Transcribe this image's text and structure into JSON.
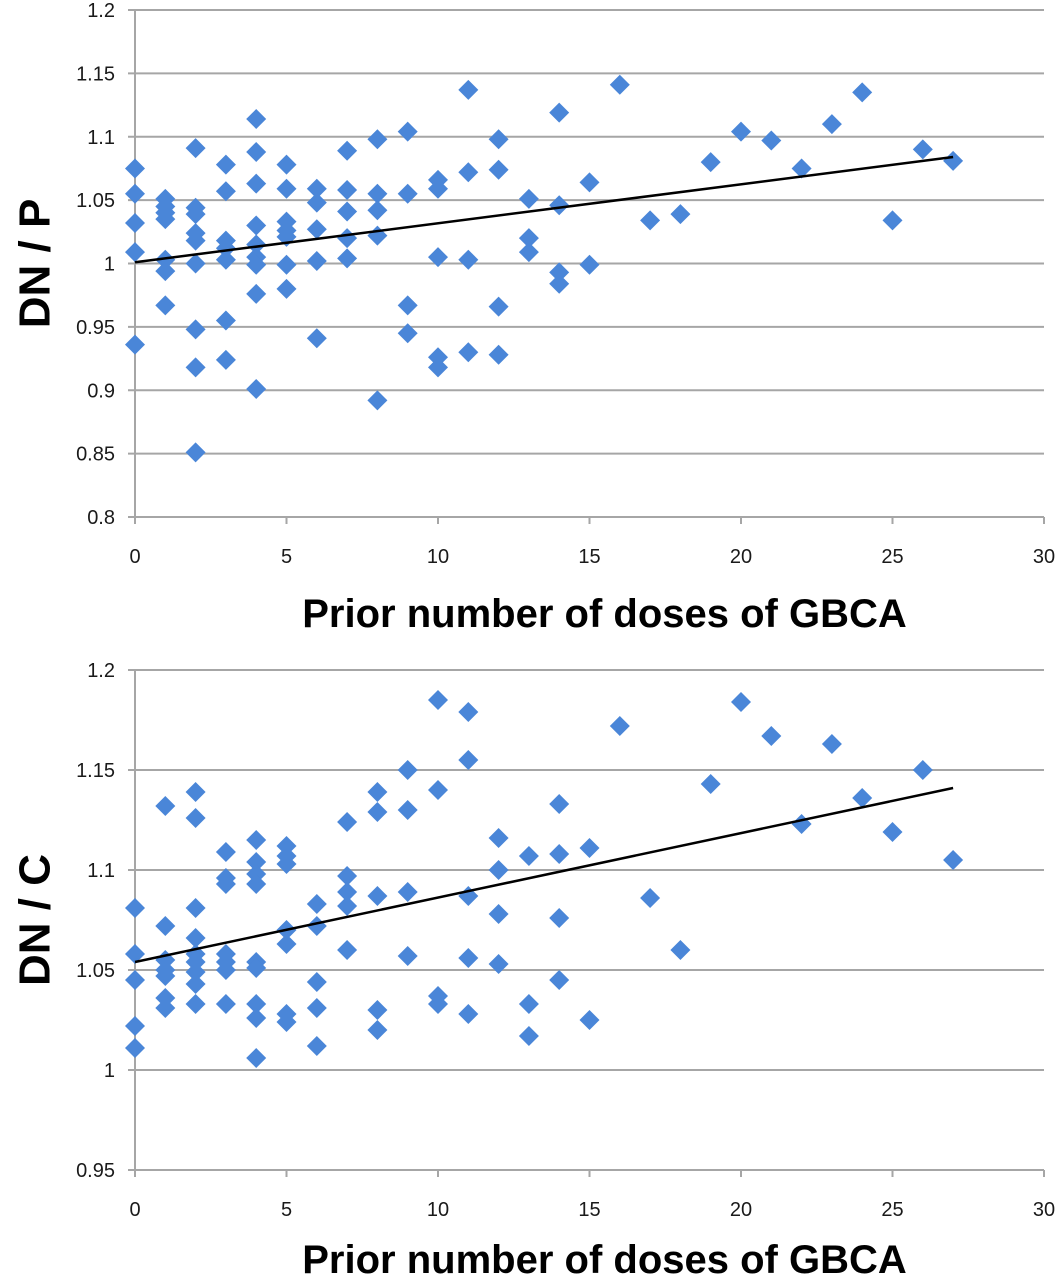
{
  "chart_data": [
    {
      "type": "scatter",
      "xlabel": "Prior number of doses of GBCA",
      "ylabel": "DN / P",
      "xlim": [
        0,
        30
      ],
      "ylim": [
        0.8,
        1.2
      ],
      "xticks": [
        "0",
        "5",
        "10",
        "15",
        "20",
        "25",
        "30"
      ],
      "yticks": [
        "0.8",
        "0.85",
        "0.9",
        "0.95",
        "1",
        "1.05",
        "1.1",
        "1.15",
        "1.2"
      ],
      "grid": "horizontal",
      "marker": "diamond",
      "colors": {
        "points": "#4a86d8",
        "trendline": "#000000",
        "grid": "#a6a6a6"
      },
      "trendline": {
        "type": "linear",
        "x": [
          0,
          27
        ],
        "y": [
          1.001,
          1.084
        ]
      },
      "points": [
        [
          0,
          1.075
        ],
        [
          0,
          1.055
        ],
        [
          0,
          1.032
        ],
        [
          0,
          1.009
        ],
        [
          0,
          0.936
        ],
        [
          1,
          1.051
        ],
        [
          1,
          1.045
        ],
        [
          1,
          1.04
        ],
        [
          1,
          1.035
        ],
        [
          1,
          1.003
        ],
        [
          1,
          0.994
        ],
        [
          1,
          0.967
        ],
        [
          2,
          1.091
        ],
        [
          2,
          1.044
        ],
        [
          2,
          1.039
        ],
        [
          2,
          1.024
        ],
        [
          2,
          1.018
        ],
        [
          2,
          1.0
        ],
        [
          2,
          0.948
        ],
        [
          2,
          0.918
        ],
        [
          2,
          0.851
        ],
        [
          3,
          1.078
        ],
        [
          3,
          1.057
        ],
        [
          3,
          1.018
        ],
        [
          3,
          1.012
        ],
        [
          3,
          1.003
        ],
        [
          3,
          0.955
        ],
        [
          3,
          0.924
        ],
        [
          4,
          1.114
        ],
        [
          4,
          1.088
        ],
        [
          4,
          1.063
        ],
        [
          4,
          1.03
        ],
        [
          4,
          1.015
        ],
        [
          4,
          1.005
        ],
        [
          4,
          0.999
        ],
        [
          4,
          0.976
        ],
        [
          4,
          0.901
        ],
        [
          5,
          1.078
        ],
        [
          5,
          1.059
        ],
        [
          5,
          1.033
        ],
        [
          5,
          1.026
        ],
        [
          5,
          1.021
        ],
        [
          5,
          0.999
        ],
        [
          5,
          0.98
        ],
        [
          6,
          1.059
        ],
        [
          6,
          1.048
        ],
        [
          6,
          1.027
        ],
        [
          6,
          1.002
        ],
        [
          6,
          0.941
        ],
        [
          7,
          1.089
        ],
        [
          7,
          1.058
        ],
        [
          7,
          1.041
        ],
        [
          7,
          1.02
        ],
        [
          7,
          1.004
        ],
        [
          8,
          1.098
        ],
        [
          8,
          1.055
        ],
        [
          8,
          1.042
        ],
        [
          8,
          1.022
        ],
        [
          8,
          0.892
        ],
        [
          9,
          1.104
        ],
        [
          9,
          1.055
        ],
        [
          9,
          0.967
        ],
        [
          9,
          0.945
        ],
        [
          10,
          1.066
        ],
        [
          10,
          1.059
        ],
        [
          10,
          1.005
        ],
        [
          10,
          0.926
        ],
        [
          10,
          0.918
        ],
        [
          11,
          1.137
        ],
        [
          11,
          1.072
        ],
        [
          11,
          1.003
        ],
        [
          11,
          0.93
        ],
        [
          12,
          1.098
        ],
        [
          12,
          1.074
        ],
        [
          12,
          0.966
        ],
        [
          12,
          0.928
        ],
        [
          13,
          1.051
        ],
        [
          13,
          1.02
        ],
        [
          13,
          1.009
        ],
        [
          14,
          1.119
        ],
        [
          14,
          1.046
        ],
        [
          14,
          0.993
        ],
        [
          14,
          0.984
        ],
        [
          15,
          1.064
        ],
        [
          15,
          0.999
        ],
        [
          16,
          1.141
        ],
        [
          17,
          1.034
        ],
        [
          18,
          1.039
        ],
        [
          19,
          1.08
        ],
        [
          20,
          1.104
        ],
        [
          21,
          1.097
        ],
        [
          22,
          1.075
        ],
        [
          23,
          1.11
        ],
        [
          24,
          1.135
        ],
        [
          25,
          1.034
        ],
        [
          26,
          1.09
        ],
        [
          27,
          1.081
        ]
      ]
    },
    {
      "type": "scatter",
      "xlabel": "Prior number of doses of GBCA",
      "ylabel": "DN / C",
      "xlim": [
        0,
        30
      ],
      "ylim": [
        0.95,
        1.2
      ],
      "xticks": [
        "0",
        "5",
        "10",
        "15",
        "20",
        "25",
        "30"
      ],
      "yticks": [
        "0.95",
        "1",
        "1.05",
        "1.1",
        "1.15",
        "1.2"
      ],
      "grid": "horizontal",
      "marker": "diamond",
      "colors": {
        "points": "#4a86d8",
        "trendline": "#000000",
        "grid": "#a6a6a6"
      },
      "trendline": {
        "type": "linear",
        "x": [
          0,
          27
        ],
        "y": [
          1.054,
          1.141
        ]
      },
      "points": [
        [
          0,
          1.081
        ],
        [
          0,
          1.058
        ],
        [
          0,
          1.045
        ],
        [
          0,
          1.022
        ],
        [
          0,
          1.011
        ],
        [
          1,
          1.132
        ],
        [
          1,
          1.072
        ],
        [
          1,
          1.055
        ],
        [
          1,
          1.05
        ],
        [
          1,
          1.047
        ],
        [
          1,
          1.036
        ],
        [
          1,
          1.031
        ],
        [
          2,
          1.139
        ],
        [
          2,
          1.126
        ],
        [
          2,
          1.081
        ],
        [
          2,
          1.066
        ],
        [
          2,
          1.058
        ],
        [
          2,
          1.054
        ],
        [
          2,
          1.049
        ],
        [
          2,
          1.043
        ],
        [
          2,
          1.033
        ],
        [
          3,
          1.109
        ],
        [
          3,
          1.096
        ],
        [
          3,
          1.093
        ],
        [
          3,
          1.058
        ],
        [
          3,
          1.054
        ],
        [
          3,
          1.05
        ],
        [
          3,
          1.033
        ],
        [
          4,
          1.115
        ],
        [
          4,
          1.104
        ],
        [
          4,
          1.098
        ],
        [
          4,
          1.093
        ],
        [
          4,
          1.054
        ],
        [
          4,
          1.051
        ],
        [
          4,
          1.033
        ],
        [
          4,
          1.026
        ],
        [
          4,
          1.006
        ],
        [
          5,
          1.112
        ],
        [
          5,
          1.107
        ],
        [
          5,
          1.103
        ],
        [
          5,
          1.07
        ],
        [
          5,
          1.063
        ],
        [
          5,
          1.028
        ],
        [
          5,
          1.024
        ],
        [
          6,
          1.083
        ],
        [
          6,
          1.072
        ],
        [
          6,
          1.044
        ],
        [
          6,
          1.031
        ],
        [
          6,
          1.012
        ],
        [
          7,
          1.124
        ],
        [
          7,
          1.097
        ],
        [
          7,
          1.089
        ],
        [
          7,
          1.082
        ],
        [
          7,
          1.06
        ],
        [
          8,
          1.139
        ],
        [
          8,
          1.129
        ],
        [
          8,
          1.087
        ],
        [
          8,
          1.03
        ],
        [
          8,
          1.02
        ],
        [
          9,
          1.15
        ],
        [
          9,
          1.13
        ],
        [
          9,
          1.089
        ],
        [
          9,
          1.057
        ],
        [
          10,
          1.185
        ],
        [
          10,
          1.14
        ],
        [
          10,
          1.037
        ],
        [
          10,
          1.033
        ],
        [
          11,
          1.179
        ],
        [
          11,
          1.155
        ],
        [
          11,
          1.087
        ],
        [
          11,
          1.056
        ],
        [
          11,
          1.028
        ],
        [
          12,
          1.116
        ],
        [
          12,
          1.1
        ],
        [
          12,
          1.078
        ],
        [
          12,
          1.053
        ],
        [
          13,
          1.107
        ],
        [
          13,
          1.033
        ],
        [
          13,
          1.017
        ],
        [
          14,
          1.133
        ],
        [
          14,
          1.108
        ],
        [
          14,
          1.076
        ],
        [
          14,
          1.045
        ],
        [
          15,
          1.111
        ],
        [
          15,
          1.025
        ],
        [
          16,
          1.172
        ],
        [
          17,
          1.086
        ],
        [
          18,
          1.06
        ],
        [
          19,
          1.143
        ],
        [
          20,
          1.184
        ],
        [
          21,
          1.167
        ],
        [
          22,
          1.123
        ],
        [
          23,
          1.163
        ],
        [
          24,
          1.136
        ],
        [
          25,
          1.119
        ],
        [
          26,
          1.15
        ],
        [
          27,
          1.105
        ]
      ]
    }
  ]
}
